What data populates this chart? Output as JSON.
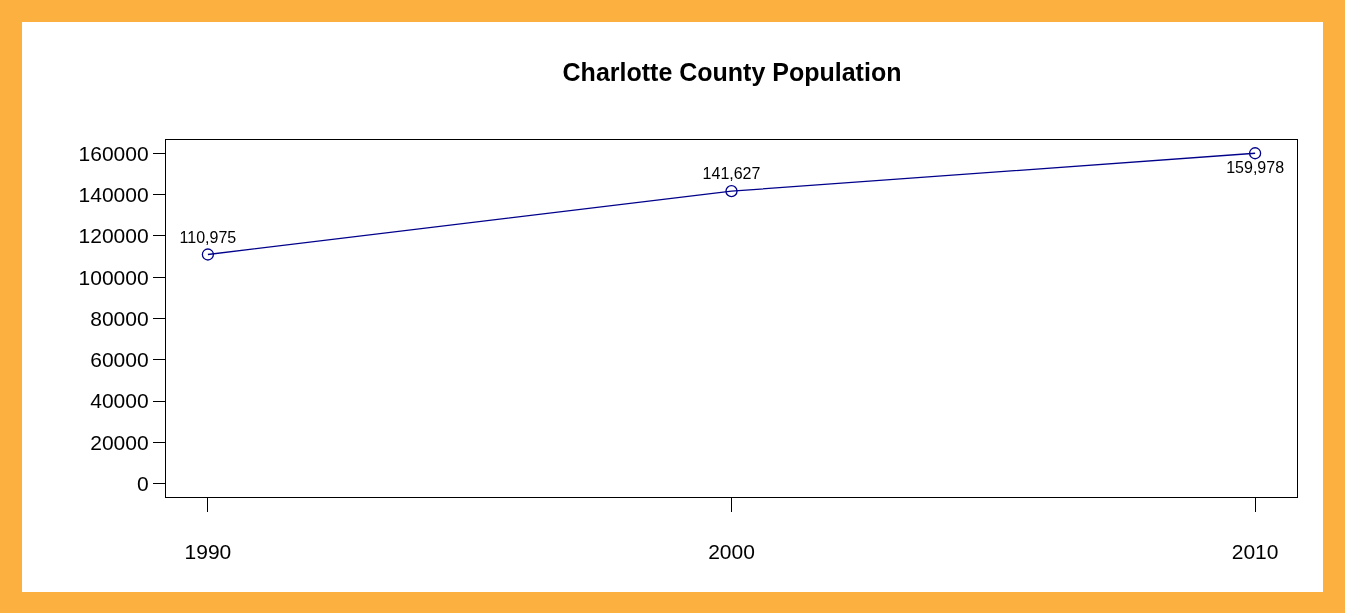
{
  "chart_data": {
    "type": "line",
    "title": "Charlotte County Population",
    "x": [
      1990,
      2000,
      2010
    ],
    "series": [
      {
        "color": "#00008b",
        "values": [
          110975,
          141627,
          159978
        ],
        "value_labels": [
          "110,975",
          "141,627",
          "159,978"
        ]
      }
    ],
    "xlim": [
      1989.2,
      2010.8
    ],
    "xticks": [
      1990,
      2000,
      2010
    ],
    "ylim": [
      -6400,
      166400
    ],
    "yticks": [
      0,
      20000,
      40000,
      60000,
      80000,
      100000,
      120000,
      140000,
      160000
    ],
    "marker": "circle",
    "line_style": "solid"
  }
}
